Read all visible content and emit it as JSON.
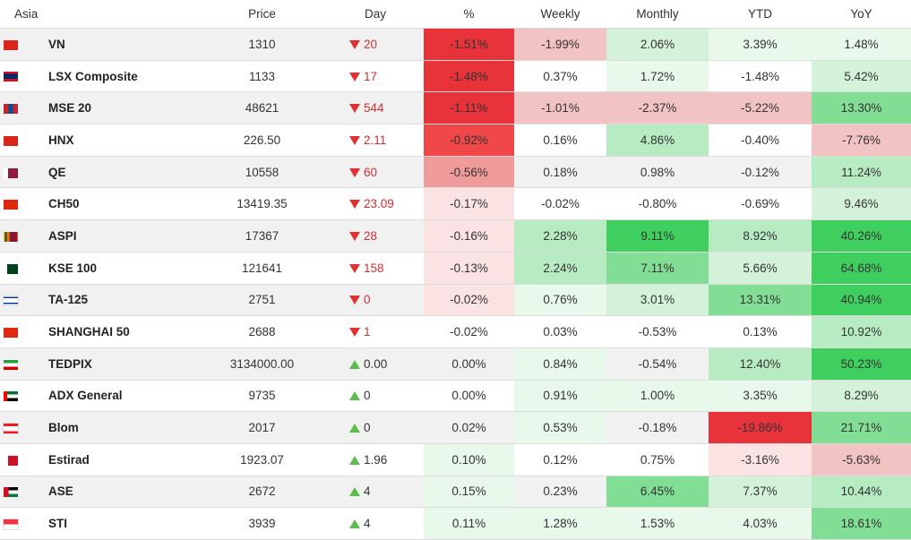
{
  "header": {
    "region": "Asia",
    "price": "Price",
    "day": "Day",
    "pct": "%",
    "weekly": "Weekly",
    "monthly": "Monthly",
    "ytd": "YTD",
    "yoy": "YoY"
  },
  "colors": {
    "neg5": "#e8333a",
    "neg4": "#f04848",
    "neg3": "#f09b9b",
    "neg2": "#f1c3c3",
    "neg1": "#fbe3e3",
    "pos1": "#e8f8ea",
    "pos2": "#d4f2d9",
    "pos3": "#b7ecc2",
    "pos4": "#82dd95",
    "pos5": "#3fcf5e",
    "alt_row": "#f1f1f1"
  },
  "rows": [
    {
      "flag": "vietnam-flag",
      "name": "VN",
      "price": "1310",
      "dir": "down",
      "day": "20",
      "pct": "-1.51%",
      "weekly": "-1.99%",
      "monthly": "2.06%",
      "ytd": "3.39%",
      "yoy": "1.48%",
      "bg": {
        "pct": "neg5",
        "weekly": "neg2",
        "monthly": "pos2",
        "ytd": "pos1",
        "yoy": "pos1"
      }
    },
    {
      "flag": "laos-flag",
      "name": "LSX Composite",
      "price": "1133",
      "dir": "down",
      "day": "17",
      "pct": "-1.48%",
      "weekly": "0.37%",
      "monthly": "1.72%",
      "ytd": "-1.48%",
      "yoy": "5.42%",
      "bg": {
        "pct": "neg5",
        "weekly": "",
        "monthly": "pos1",
        "ytd": "",
        "yoy": "pos2"
      }
    },
    {
      "flag": "mongolia-flag",
      "name": "MSE 20",
      "price": "48621",
      "dir": "down",
      "day": "544",
      "pct": "-1.11%",
      "weekly": "-1.01%",
      "monthly": "-2.37%",
      "ytd": "-5.22%",
      "yoy": "13.30%",
      "bg": {
        "pct": "neg5",
        "weekly": "neg2",
        "monthly": "neg2",
        "ytd": "neg2",
        "yoy": "pos4"
      }
    },
    {
      "flag": "vietnam-flag",
      "name": "HNX",
      "price": "226.50",
      "dir": "down",
      "day": "2.11",
      "pct": "-0.92%",
      "weekly": "0.16%",
      "monthly": "4.86%",
      "ytd": "-0.40%",
      "yoy": "-7.76%",
      "bg": {
        "pct": "neg4",
        "weekly": "",
        "monthly": "pos3",
        "ytd": "",
        "yoy": "neg2"
      }
    },
    {
      "flag": "qatar-flag",
      "name": "QE",
      "price": "10558",
      "dir": "down",
      "day": "60",
      "pct": "-0.56%",
      "weekly": "0.18%",
      "monthly": "0.98%",
      "ytd": "-0.12%",
      "yoy": "11.24%",
      "bg": {
        "pct": "neg3",
        "weekly": "",
        "monthly": "",
        "ytd": "",
        "yoy": "pos3"
      }
    },
    {
      "flag": "china-flag",
      "name": "CH50",
      "price": "13419.35",
      "dir": "down",
      "day": "23.09",
      "pct": "-0.17%",
      "weekly": "-0.02%",
      "monthly": "-0.80%",
      "ytd": "-0.69%",
      "yoy": "9.46%",
      "bg": {
        "pct": "neg1",
        "weekly": "",
        "monthly": "",
        "ytd": "",
        "yoy": "pos2"
      }
    },
    {
      "flag": "sri-lanka-flag",
      "name": "ASPI",
      "price": "17367",
      "dir": "down",
      "day": "28",
      "pct": "-0.16%",
      "weekly": "2.28%",
      "monthly": "9.11%",
      "ytd": "8.92%",
      "yoy": "40.26%",
      "bg": {
        "pct": "neg1",
        "weekly": "pos3",
        "monthly": "pos5",
        "ytd": "pos3",
        "yoy": "pos5"
      }
    },
    {
      "flag": "pakistan-flag",
      "name": "KSE 100",
      "price": "121641",
      "dir": "down",
      "day": "158",
      "pct": "-0.13%",
      "weekly": "2.24%",
      "monthly": "7.11%",
      "ytd": "5.66%",
      "yoy": "64.68%",
      "bg": {
        "pct": "neg1",
        "weekly": "pos3",
        "monthly": "pos4",
        "ytd": "pos2",
        "yoy": "pos5"
      }
    },
    {
      "flag": "israel-flag",
      "name": "TA-125",
      "price": "2751",
      "dir": "down",
      "day": "0",
      "pct": "-0.02%",
      "weekly": "0.76%",
      "monthly": "3.01%",
      "ytd": "13.31%",
      "yoy": "40.94%",
      "bg": {
        "pct": "neg1",
        "weekly": "pos1",
        "monthly": "pos2",
        "ytd": "pos4",
        "yoy": "pos5"
      }
    },
    {
      "flag": "china-flag",
      "name": "SHANGHAI 50",
      "price": "2688",
      "dir": "down",
      "day": "1",
      "pct": "-0.02%",
      "weekly": "0.03%",
      "monthly": "-0.53%",
      "ytd": "0.13%",
      "yoy": "10.92%",
      "bg": {
        "pct": "",
        "weekly": "",
        "monthly": "",
        "ytd": "",
        "yoy": "pos3"
      }
    },
    {
      "flag": "iran-flag",
      "name": "TEDPIX",
      "price": "3134000.00",
      "dir": "up",
      "day": "0.00",
      "pct": "0.00%",
      "weekly": "0.84%",
      "monthly": "-0.54%",
      "ytd": "12.40%",
      "yoy": "50.23%",
      "bg": {
        "pct": "",
        "weekly": "pos1",
        "monthly": "",
        "ytd": "pos3",
        "yoy": "pos5"
      }
    },
    {
      "flag": "uae-flag",
      "name": "ADX General",
      "price": "9735",
      "dir": "up",
      "day": "0",
      "pct": "0.00%",
      "weekly": "0.91%",
      "monthly": "1.00%",
      "ytd": "3.35%",
      "yoy": "8.29%",
      "bg": {
        "pct": "",
        "weekly": "pos1",
        "monthly": "pos1",
        "ytd": "pos1",
        "yoy": "pos2"
      }
    },
    {
      "flag": "lebanon-flag",
      "name": "Blom",
      "price": "2017",
      "dir": "up",
      "day": "0",
      "pct": "0.02%",
      "weekly": "0.53%",
      "monthly": "-0.18%",
      "ytd": "-19.86%",
      "yoy": "21.71%",
      "bg": {
        "pct": "",
        "weekly": "pos1",
        "monthly": "",
        "ytd": "neg5",
        "yoy": "pos4"
      }
    },
    {
      "flag": "bahrain-flag",
      "name": "Estirad",
      "price": "1923.07",
      "dir": "up",
      "day": "1.96",
      "pct": "0.10%",
      "weekly": "0.12%",
      "monthly": "0.75%",
      "ytd": "-3.16%",
      "yoy": "-5.63%",
      "bg": {
        "pct": "pos1",
        "weekly": "",
        "monthly": "",
        "ytd": "neg1",
        "yoy": "neg2"
      }
    },
    {
      "flag": "jordan-flag",
      "name": "ASE",
      "price": "2672",
      "dir": "up",
      "day": "4",
      "pct": "0.15%",
      "weekly": "0.23%",
      "monthly": "6.45%",
      "ytd": "7.37%",
      "yoy": "10.44%",
      "bg": {
        "pct": "pos1",
        "weekly": "",
        "monthly": "pos4",
        "ytd": "pos2",
        "yoy": "pos3"
      }
    },
    {
      "flag": "singapore-flag",
      "name": "STI",
      "price": "3939",
      "dir": "up",
      "day": "4",
      "pct": "0.11%",
      "weekly": "1.28%",
      "monthly": "1.53%",
      "ytd": "4.03%",
      "yoy": "18.61%",
      "bg": {
        "pct": "pos1",
        "weekly": "pos1",
        "monthly": "pos1",
        "ytd": "pos1",
        "yoy": "pos4"
      }
    }
  ]
}
